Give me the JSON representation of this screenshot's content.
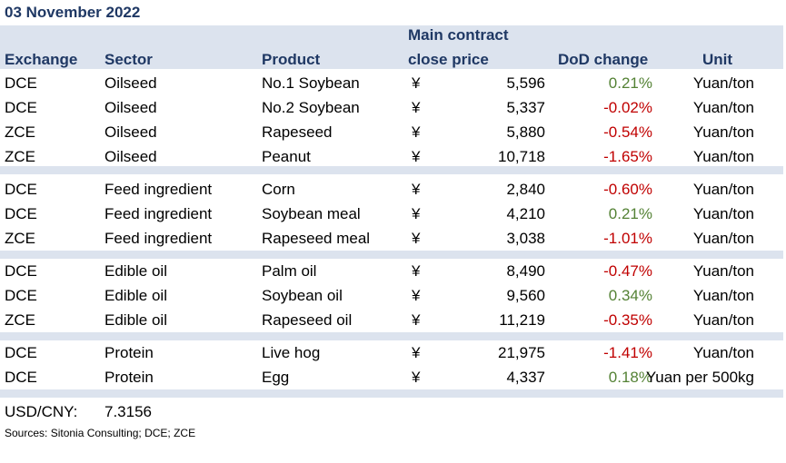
{
  "title": "03 November 2022",
  "headers": {
    "exchange": "Exchange",
    "sector": "Sector",
    "product": "Product",
    "close_price_line1": "Main contract",
    "close_price_line2": "close price",
    "dod_change": "DoD change",
    "unit": "Unit"
  },
  "currency_symbol": "¥",
  "groups": [
    [
      {
        "exchange": "DCE",
        "sector": "Oilseed",
        "product": "No.1 Soybean",
        "price": "5,596",
        "change": "0.21%",
        "direction": "up",
        "unit": "Yuan/ton"
      },
      {
        "exchange": "DCE",
        "sector": "Oilseed",
        "product": "No.2 Soybean",
        "price": "5,337",
        "change": "-0.02%",
        "direction": "down",
        "unit": "Yuan/ton"
      },
      {
        "exchange": "ZCE",
        "sector": "Oilseed",
        "product": "Rapeseed",
        "price": "5,880",
        "change": "-0.54%",
        "direction": "down",
        "unit": "Yuan/ton"
      },
      {
        "exchange": "ZCE",
        "sector": "Oilseed",
        "product": "Peanut",
        "price": "10,718",
        "change": "-1.65%",
        "direction": "down",
        "unit": "Yuan/ton"
      }
    ],
    [
      {
        "exchange": "DCE",
        "sector": "Feed ingredient",
        "product": "Corn",
        "price": "2,840",
        "change": "-0.60%",
        "direction": "down",
        "unit": "Yuan/ton"
      },
      {
        "exchange": "DCE",
        "sector": "Feed ingredient",
        "product": "Soybean meal",
        "price": "4,210",
        "change": "0.21%",
        "direction": "up",
        "unit": "Yuan/ton"
      },
      {
        "exchange": "ZCE",
        "sector": "Feed ingredient",
        "product": "Rapeseed meal",
        "price": "3,038",
        "change": "-1.01%",
        "direction": "down",
        "unit": "Yuan/ton"
      }
    ],
    [
      {
        "exchange": "DCE",
        "sector": "Edible oil",
        "product": "Palm oil",
        "price": "8,490",
        "change": "-0.47%",
        "direction": "down",
        "unit": "Yuan/ton"
      },
      {
        "exchange": "DCE",
        "sector": "Edible oil",
        "product": "Soybean oil",
        "price": "9,560",
        "change": "0.34%",
        "direction": "up",
        "unit": "Yuan/ton"
      },
      {
        "exchange": "ZCE",
        "sector": "Edible oil",
        "product": "Rapeseed oil",
        "price": "11,219",
        "change": "-0.35%",
        "direction": "down",
        "unit": "Yuan/ton"
      }
    ],
    [
      {
        "exchange": "DCE",
        "sector": "Protein",
        "product": "Live hog",
        "price": "21,975",
        "change": "-1.41%",
        "direction": "down",
        "unit": "Yuan/ton"
      },
      {
        "exchange": "DCE",
        "sector": "Protein",
        "product": "Egg",
        "price": "4,337",
        "change": "0.18%",
        "direction": "up",
        "unit": "Yuan per 500kg"
      }
    ]
  ],
  "fx": {
    "label": "USD/CNY:",
    "value": "7.3156"
  },
  "source": "Sources: Sitonia Consulting; DCE; ZCE",
  "colors": {
    "header_bg": "#dce3ee",
    "header_text": "#1f3864",
    "positive": "#548235",
    "negative": "#c00000"
  }
}
